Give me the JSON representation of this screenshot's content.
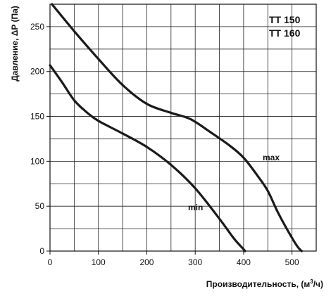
{
  "chart_data": {
    "type": "line",
    "title": "",
    "legend": [
      "TT 150",
      "TT 160"
    ],
    "xlabel": "Производительность, (м³/ч)",
    "xlabel_parts": {
      "main": "Производительность, (м",
      "sup": "3",
      "tail": "/ч)"
    },
    "ylabel": "Давление, ΔP (Па)",
    "xlim": [
      0,
      550
    ],
    "ylim": [
      0,
      275
    ],
    "x_ticks": [
      0,
      100,
      200,
      300,
      400,
      500
    ],
    "y_ticks": [
      0,
      50,
      100,
      150,
      200,
      250
    ],
    "x_grid_step": 50,
    "y_grid_step": 25,
    "grid": true,
    "series": [
      {
        "name": "max",
        "x": [
          4,
          50,
          100,
          150,
          200,
          250,
          290,
          330,
          370,
          400,
          430,
          450,
          470,
          490,
          510,
          520
        ],
        "y": [
          275,
          245,
          214,
          185,
          164,
          154,
          147,
          133,
          118,
          104,
          83,
          67,
          44,
          24,
          6,
          0
        ]
      },
      {
        "name": "min",
        "x": [
          0,
          25,
          50,
          75,
          100,
          150,
          200,
          250,
          300,
          350,
          380,
          400,
          403
        ],
        "y": [
          207,
          188,
          168,
          155,
          145,
          131,
          116,
          96,
          70,
          36,
          14,
          2,
          0
        ]
      }
    ]
  }
}
